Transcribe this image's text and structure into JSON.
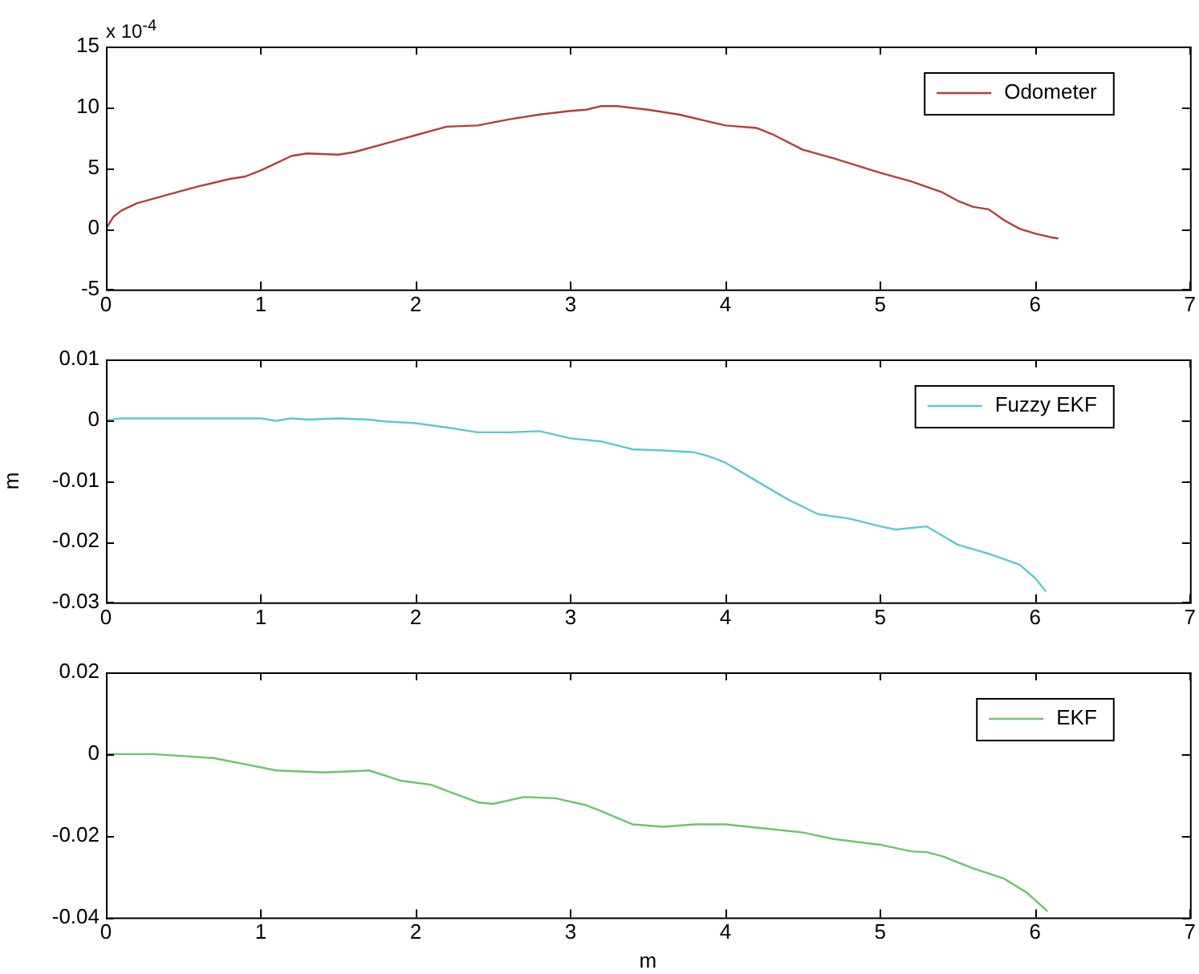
{
  "chart_data": [
    {
      "type": "line",
      "annotations": [
        "x 10$^{-4}$"
      ],
      "legend": "top right",
      "marker": "none",
      "line_style": "solid",
      "grid": false,
      "xlim": [
        0,
        7
      ],
      "xticks": [
        0,
        1,
        2,
        3,
        4,
        5,
        6,
        7
      ],
      "ylim": [
        -5,
        15
      ],
      "yticks": [
        -5,
        0,
        5,
        10,
        15
      ],
      "series": [
        {
          "name": "Odometer",
          "color": "#b0403c",
          "x": [
            0,
            0.05,
            0.1,
            0.2,
            0.4,
            0.6,
            0.8,
            0.9,
            1.0,
            1.1,
            1.2,
            1.3,
            1.5,
            1.6,
            1.8,
            2.0,
            2.2,
            2.4,
            2.6,
            2.8,
            3.0,
            3.1,
            3.2,
            3.3,
            3.5,
            3.7,
            3.9,
            4.0,
            4.2,
            4.3,
            4.5,
            4.7,
            4.9,
            5.0,
            5.2,
            5.4,
            5.5,
            5.6,
            5.7,
            5.8,
            5.9,
            6.0,
            6.1,
            6.15
          ],
          "values": [
            0,
            1,
            1.5,
            2.1,
            2.8,
            3.5,
            4.1,
            4.3,
            4.8,
            5.4,
            6.0,
            6.2,
            6.1,
            6.3,
            7.0,
            7.7,
            8.4,
            8.5,
            9.0,
            9.4,
            9.7,
            9.8,
            10.1,
            10.1,
            9.8,
            9.4,
            8.8,
            8.5,
            8.3,
            7.8,
            6.5,
            5.8,
            5.0,
            4.6,
            3.9,
            3.0,
            2.3,
            1.8,
            1.6,
            0.7,
            0.0,
            -0.4,
            -0.7,
            -0.8
          ]
        }
      ]
    },
    {
      "type": "line",
      "ylabel": "m",
      "legend": "top right",
      "marker": "none",
      "line_style": "solid",
      "grid": false,
      "xlim": [
        0,
        7
      ],
      "xticks": [
        0,
        1,
        2,
        3,
        4,
        5,
        6,
        7
      ],
      "ylim": [
        -0.03,
        0.01
      ],
      "yticks": [
        -0.03,
        -0.02,
        -0.01,
        0,
        0.01
      ],
      "series": [
        {
          "name": "Fuzzy EKF",
          "color": "#5ec8d0",
          "x": [
            0,
            0.1,
            1.0,
            1.1,
            1.2,
            1.3,
            1.5,
            1.7,
            1.8,
            2.0,
            2.2,
            2.4,
            2.6,
            2.8,
            3.0,
            3.2,
            3.4,
            3.6,
            3.8,
            3.9,
            4.0,
            4.2,
            4.4,
            4.6,
            4.8,
            5.0,
            5.1,
            5.3,
            5.4,
            5.5,
            5.7,
            5.9,
            6.0,
            6.07
          ],
          "values": [
            0,
            0.0003,
            0.0003,
            -0.0001,
            0.0003,
            0.0001,
            0.0003,
            0.0001,
            -0.0002,
            -0.0005,
            -0.0012,
            -0.002,
            -0.002,
            -0.0018,
            -0.003,
            -0.0035,
            -0.0048,
            -0.005,
            -0.0053,
            -0.006,
            -0.007,
            -0.01,
            -0.013,
            -0.0155,
            -0.0162,
            -0.0175,
            -0.018,
            -0.0175,
            -0.019,
            -0.0205,
            -0.022,
            -0.0238,
            -0.026,
            -0.0282
          ]
        }
      ]
    },
    {
      "type": "line",
      "xlabel": "m",
      "legend": "top right",
      "marker": "none",
      "line_style": "solid",
      "grid": false,
      "xlim": [
        0,
        7
      ],
      "xticks": [
        0,
        1,
        2,
        3,
        4,
        5,
        6,
        7
      ],
      "ylim": [
        -0.04,
        0.02
      ],
      "yticks": [
        -0.04,
        -0.02,
        0,
        0.02
      ],
      "series": [
        {
          "name": "EKF",
          "color": "#6cc46c",
          "x": [
            0,
            0.3,
            0.5,
            0.7,
            0.9,
            1.1,
            1.4,
            1.6,
            1.7,
            1.9,
            2.1,
            2.2,
            2.4,
            2.5,
            2.7,
            2.9,
            3.1,
            3.2,
            3.4,
            3.6,
            3.8,
            4.0,
            4.2,
            4.5,
            4.7,
            5.0,
            5.2,
            5.3,
            5.4,
            5.6,
            5.8,
            5.95,
            6.08
          ],
          "values": [
            0,
            0,
            -0.0005,
            -0.001,
            -0.0025,
            -0.004,
            -0.0045,
            -0.0042,
            -0.004,
            -0.0065,
            -0.0075,
            -0.009,
            -0.0118,
            -0.0122,
            -0.0105,
            -0.0108,
            -0.0125,
            -0.014,
            -0.0172,
            -0.0178,
            -0.0172,
            -0.0172,
            -0.018,
            -0.0192,
            -0.0208,
            -0.0222,
            -0.0238,
            -0.024,
            -0.025,
            -0.028,
            -0.0305,
            -0.034,
            -0.0385
          ]
        }
      ]
    }
  ]
}
